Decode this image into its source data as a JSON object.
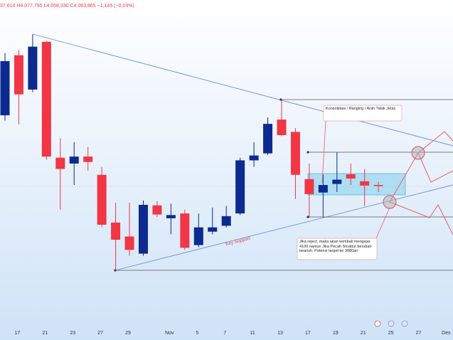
{
  "chart_data": {
    "type": "candlestick",
    "header": "37,610 H4.077,795 L4.058,330 C4.063,865 −1,145 (−0,03%)",
    "x_axis_labels": [
      "17",
      "21",
      "23",
      "27",
      "29",
      "Nov",
      "5",
      "7",
      "11",
      "13",
      "17",
      "19",
      "21",
      "25",
      "27",
      "Des"
    ],
    "up_color": "#0c2a8f",
    "down_color": "#f23645",
    "ylim": [
      3750,
      4384
    ],
    "open": [
      4169,
      4281,
      4217,
      4306,
      4090,
      4079,
      4092,
      4058,
      3969,
      3943,
      3911,
      4001,
      3977,
      3986,
      3927,
      3952,
      3963,
      3986,
      4085,
      4098,
      4161,
      4138,
      4050,
      4025,
      4041,
      4059,
      4046,
      4039
    ],
    "high": [
      4285,
      4291,
      4320,
      4308,
      4126,
      4119,
      4110,
      4073,
      4006,
      4006,
      4010,
      4009,
      4004,
      3993,
      3986,
      3997,
      4000,
      4090,
      4119,
      4165,
      4198,
      4145,
      4079,
      4059,
      4100,
      4079,
      4069,
      4045
    ],
    "low": [
      4159,
      4152,
      4212,
      4086,
      3993,
      4039,
      4066,
      3960,
      3880,
      3907,
      3907,
      3979,
      3947,
      3918,
      3923,
      3947,
      3960,
      3983,
      4073,
      4095,
      4130,
      4013,
      3980,
      3980,
      4026,
      4039,
      4000,
      4026
    ],
    "close": [
      4270,
      4208,
      4297,
      4092,
      4069,
      4092,
      4082,
      3965,
      3937,
      3918,
      4002,
      3984,
      3983,
      3922,
      3960,
      3960,
      3981,
      4085,
      4094,
      4153,
      4132,
      4058,
      4022,
      4039,
      4049,
      4051,
      4038,
      4037
    ],
    "annotations": {
      "consolidation": "Konsolidasi / Ranging / Arah Tidak Jelas",
      "reject": "Jika reject, maka akan kembali mengejar 4100 namun Jika Pecah Struktur berubah bearish. Potensi target ke 3880an",
      "support": "Key Support"
    }
  }
}
